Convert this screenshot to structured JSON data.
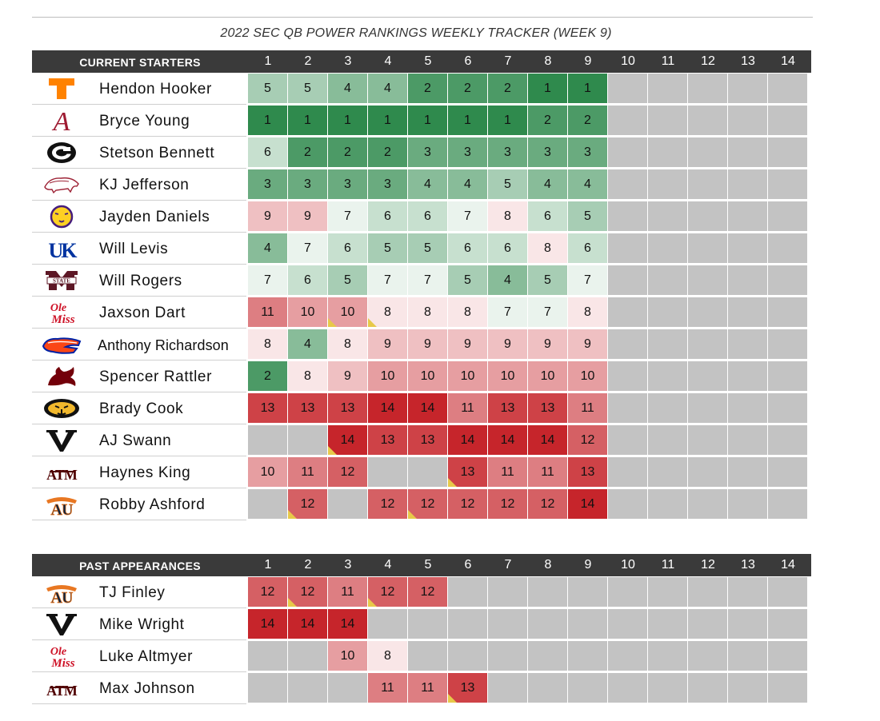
{
  "title": "2022 SEC QB POWER RANKINGS WEEKLY TRACKER (WEEK 9)",
  "chart_data": {
    "type": "table",
    "title": "2022 SEC QB POWER RANKINGS WEEKLY TRACKER (WEEK 9)",
    "weeks": [
      "1",
      "2",
      "3",
      "4",
      "5",
      "6",
      "7",
      "8",
      "9",
      "10",
      "11",
      "12",
      "13",
      "14"
    ],
    "scale": {
      "best_rank": 1,
      "worst_rank": 14,
      "best_color": "#2f8a4d",
      "worst_color": "#c6252b",
      "neutral_color": "#ffffff",
      "empty_color": "#c3c3c3",
      "flag_color": "#e7c94a"
    },
    "sections": [
      {
        "label": "CURRENT STARTERS",
        "players": [
          {
            "name": "Hendon Hooker",
            "team": "tennessee",
            "ranks": [
              5,
              5,
              4,
              4,
              2,
              2,
              2,
              1,
              1,
              null,
              null,
              null,
              null,
              null
            ],
            "flags": []
          },
          {
            "name": "Bryce Young",
            "team": "alabama",
            "ranks": [
              1,
              1,
              1,
              1,
              1,
              1,
              1,
              2,
              2,
              null,
              null,
              null,
              null,
              null
            ],
            "flags": []
          },
          {
            "name": "Stetson Bennett",
            "team": "georgia",
            "ranks": [
              6,
              2,
              2,
              2,
              3,
              3,
              3,
              3,
              3,
              null,
              null,
              null,
              null,
              null
            ],
            "flags": []
          },
          {
            "name": "KJ Jefferson",
            "team": "arkansas",
            "ranks": [
              3,
              3,
              3,
              3,
              4,
              4,
              5,
              4,
              4,
              null,
              null,
              null,
              null,
              null
            ],
            "flags": []
          },
          {
            "name": "Jayden Daniels",
            "team": "lsu",
            "ranks": [
              9,
              9,
              7,
              6,
              6,
              7,
              8,
              6,
              5,
              null,
              null,
              null,
              null,
              null
            ],
            "flags": []
          },
          {
            "name": "Will Levis",
            "team": "kentucky",
            "ranks": [
              4,
              7,
              6,
              5,
              5,
              6,
              6,
              8,
              6,
              null,
              null,
              null,
              null,
              null
            ],
            "flags": []
          },
          {
            "name": "Will Rogers",
            "team": "mississippi-state",
            "ranks": [
              7,
              6,
              5,
              7,
              7,
              5,
              4,
              5,
              7,
              null,
              null,
              null,
              null,
              null
            ],
            "flags": []
          },
          {
            "name": "Jaxson Dart",
            "team": "ole-miss",
            "ranks": [
              11,
              10,
              10,
              8,
              8,
              8,
              7,
              7,
              8,
              null,
              null,
              null,
              null,
              null
            ],
            "flags": [
              3,
              4
            ]
          },
          {
            "name": "Anthony Richardson",
            "team": "florida",
            "ranks": [
              8,
              4,
              8,
              9,
              9,
              9,
              9,
              9,
              9,
              null,
              null,
              null,
              null,
              null
            ],
            "flags": []
          },
          {
            "name": "Spencer Rattler",
            "team": "south-carolina",
            "ranks": [
              2,
              8,
              9,
              10,
              10,
              10,
              10,
              10,
              10,
              null,
              null,
              null,
              null,
              null
            ],
            "flags": []
          },
          {
            "name": "Brady Cook",
            "team": "missouri",
            "ranks": [
              13,
              13,
              13,
              14,
              14,
              11,
              13,
              13,
              11,
              null,
              null,
              null,
              null,
              null
            ],
            "flags": []
          },
          {
            "name": "AJ Swann",
            "team": "vanderbilt",
            "ranks": [
              null,
              null,
              14,
              13,
              13,
              14,
              14,
              14,
              12,
              null,
              null,
              null,
              null,
              null
            ],
            "flags": [
              3
            ]
          },
          {
            "name": "Haynes King",
            "team": "texas-am",
            "ranks": [
              10,
              11,
              12,
              null,
              null,
              13,
              11,
              11,
              13,
              null,
              null,
              null,
              null,
              null
            ],
            "flags": [
              6
            ]
          },
          {
            "name": "Robby Ashford",
            "team": "auburn",
            "ranks": [
              null,
              12,
              null,
              12,
              12,
              12,
              12,
              12,
              14,
              null,
              null,
              null,
              null,
              null
            ],
            "flags": [
              2,
              5
            ]
          }
        ]
      },
      {
        "label": "PAST APPEARANCES",
        "players": [
          {
            "name": "TJ Finley",
            "team": "auburn",
            "ranks": [
              12,
              12,
              11,
              12,
              12,
              null,
              null,
              null,
              null,
              null,
              null,
              null,
              null,
              null
            ],
            "flags": [
              2,
              4
            ]
          },
          {
            "name": "Mike Wright",
            "team": "vanderbilt",
            "ranks": [
              14,
              14,
              14,
              null,
              null,
              null,
              null,
              null,
              null,
              null,
              null,
              null,
              null,
              null
            ],
            "flags": []
          },
          {
            "name": "Luke Altmyer",
            "team": "ole-miss",
            "ranks": [
              null,
              null,
              10,
              8,
              null,
              null,
              null,
              null,
              null,
              null,
              null,
              null,
              null,
              null
            ],
            "flags": []
          },
          {
            "name": "Max Johnson",
            "team": "texas-am",
            "ranks": [
              null,
              null,
              null,
              11,
              11,
              13,
              null,
              null,
              null,
              null,
              null,
              null,
              null,
              null
            ],
            "flags": [
              6
            ]
          }
        ]
      }
    ]
  },
  "logos": {
    "tennessee": {
      "icon": "power-t-icon",
      "color": "#ff8200"
    },
    "alabama": {
      "icon": "script-a-icon",
      "color": "#9e1b32",
      "text": "A"
    },
    "georgia": {
      "icon": "g-icon",
      "color": "#111111"
    },
    "arkansas": {
      "icon": "razorback-icon",
      "color": "#9d2235"
    },
    "lsu": {
      "icon": "tiger-icon",
      "color": "#461d7c"
    },
    "kentucky": {
      "icon": "uk-icon",
      "color": "#0033a0",
      "text": "UK"
    },
    "mississippi-state": {
      "icon": "m-state-icon",
      "color": "#5d1725",
      "text": "STATE"
    },
    "ole-miss": {
      "icon": "ole-miss-script-icon",
      "color": "#ce1126",
      "text": [
        "Ole",
        "Miss"
      ]
    },
    "florida": {
      "icon": "gator-icon",
      "color": "#0021a5"
    },
    "south-carolina": {
      "icon": "gamecock-icon",
      "color": "#73000a"
    },
    "missouri": {
      "icon": "tiger-head-icon",
      "color": "#f1b82d"
    },
    "vanderbilt": {
      "icon": "v-icon",
      "color": "#866d4b",
      "text": "V"
    },
    "texas-am": {
      "icon": "atm-icon",
      "color": "#500000",
      "text": "ATM"
    },
    "auburn": {
      "icon": "au-icon",
      "color": "#0c2340",
      "text": "AU"
    }
  }
}
